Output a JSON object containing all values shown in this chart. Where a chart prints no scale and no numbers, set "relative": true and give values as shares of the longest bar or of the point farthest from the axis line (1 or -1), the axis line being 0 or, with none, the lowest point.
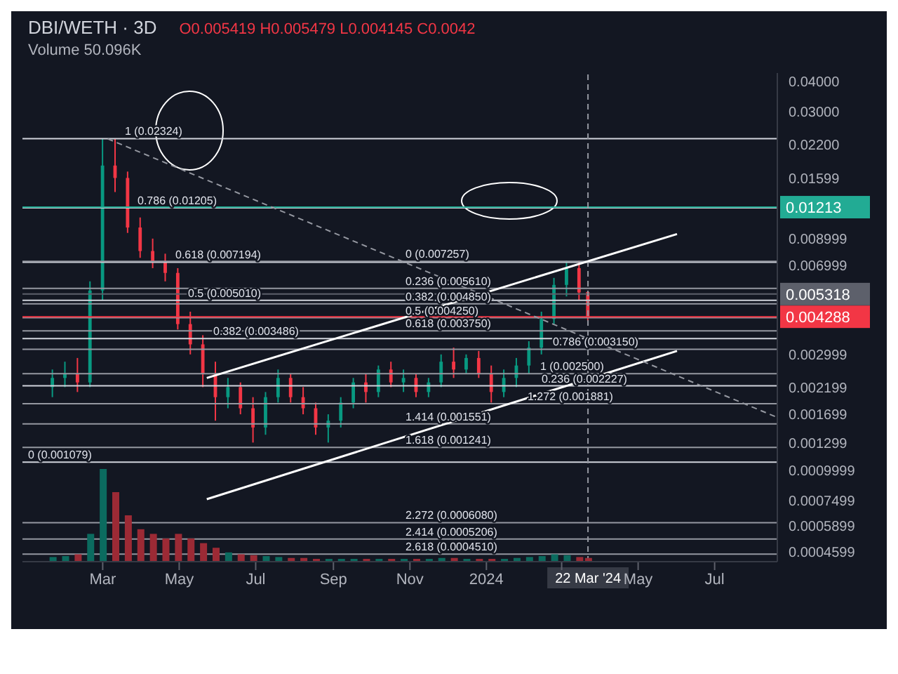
{
  "chart_data": [
    {
      "type": "candlestick",
      "title": "DBI/WETH · 3D",
      "annotations": [
        "Volume 50.096K",
        "O0.005419 H0.005479 L0.004145 C0.0042"
      ],
      "log": "y",
      "grid": false,
      "xlim": [
        "2022-12-27",
        "2024-08-20"
      ],
      "xticks": [
        {
          "value": "2023-03-01",
          "label": "Mar"
        },
        {
          "value": "2023-05-01",
          "label": "May"
        },
        {
          "value": "2023-07-01",
          "label": "Jul"
        },
        {
          "value": "2023-09-01",
          "label": "Sep"
        },
        {
          "value": "2023-11-01",
          "label": "Nov"
        },
        {
          "value": "2024-01-01",
          "label": "2024"
        },
        {
          "value": "2024-03-01",
          "label": null
        },
        {
          "value": "2024-05-01",
          "label": "May"
        },
        {
          "value": "2024-07-01",
          "label": "Jul"
        }
      ],
      "ylim": [
        0.00042,
        0.0433
      ],
      "yticks": [
        {
          "value": 0.04,
          "label": "0.04000"
        },
        {
          "value": 0.03,
          "label": "0.03000"
        },
        {
          "value": 0.022,
          "label": "0.02200"
        },
        0.01599,
        0.008999,
        0.006999,
        0.002999,
        0.002199,
        0.001699,
        0.001299,
        0.0009999,
        0.0007499,
        0.0005899,
        0.0004599
      ],
      "series": [
        {
          "type": "candlestick",
          "x": [
            "2023-01-20",
            "2023-01-30",
            "2023-02-09",
            "2023-02-19",
            "2023-03-01",
            "2023-03-11",
            "2023-03-21",
            "2023-03-31",
            "2023-04-10",
            "2023-04-20",
            "2023-04-30",
            "2023-05-10",
            "2023-05-20",
            "2023-05-30",
            "2023-06-09",
            "2023-06-19",
            "2023-06-29",
            "2023-07-09",
            "2023-07-19",
            "2023-07-29",
            "2023-08-08",
            "2023-08-18",
            "2023-08-28",
            "2023-09-07",
            "2023-09-17",
            "2023-09-27",
            "2023-10-07",
            "2023-10-17",
            "2023-10-27",
            "2023-11-06",
            "2023-11-16",
            "2023-11-26",
            "2023-12-06",
            "2023-12-16",
            "2023-12-26",
            "2024-01-05",
            "2024-01-15",
            "2024-01-25",
            "2024-02-04",
            "2024-02-14",
            "2024-02-24",
            "2024-03-05",
            "2024-03-15",
            "2024-03-22"
          ],
          "ohlc": [
            [
              0.0022,
              0.0026,
              0.002,
              0.0024
            ],
            [
              0.0024,
              0.0028,
              0.0022,
              0.0025
            ],
            [
              0.0025,
              0.0029,
              0.0021,
              0.0023
            ],
            [
              0.0023,
              0.006,
              0.0022,
              0.0055
            ],
            [
              0.0055,
              0.0232,
              0.005,
              0.018
            ],
            [
              0.018,
              0.0232,
              0.014,
              0.016
            ],
            [
              0.016,
              0.017,
              0.0095,
              0.01
            ],
            [
              0.01,
              0.011,
              0.0075,
              0.008
            ],
            [
              0.008,
              0.009,
              0.0068,
              0.0072
            ],
            [
              0.0072,
              0.0078,
              0.006,
              0.0065
            ],
            [
              0.0065,
              0.0068,
              0.0038,
              0.004
            ],
            [
              0.004,
              0.0045,
              0.003,
              0.0033
            ],
            [
              0.0033,
              0.0036,
              0.0022,
              0.0025
            ],
            [
              0.0025,
              0.0028,
              0.0016,
              0.002
            ],
            [
              0.002,
              0.0024,
              0.0018,
              0.0022
            ],
            [
              0.0022,
              0.0023,
              0.0017,
              0.0018
            ],
            [
              0.0018,
              0.002,
              0.0013,
              0.0015
            ],
            [
              0.0015,
              0.0021,
              0.0014,
              0.002
            ],
            [
              0.002,
              0.0026,
              0.0019,
              0.0024
            ],
            [
              0.0024,
              0.0025,
              0.0019,
              0.002
            ],
            [
              0.002,
              0.0022,
              0.0017,
              0.0018
            ],
            [
              0.0018,
              0.0019,
              0.0014,
              0.0015
            ],
            [
              0.0015,
              0.0017,
              0.0013,
              0.0016
            ],
            [
              0.0016,
              0.002,
              0.0015,
              0.0019
            ],
            [
              0.0019,
              0.0024,
              0.0018,
              0.0023
            ],
            [
              0.0023,
              0.0025,
              0.0019,
              0.0021
            ],
            [
              0.0021,
              0.0027,
              0.002,
              0.0026
            ],
            [
              0.0026,
              0.0028,
              0.0022,
              0.0023
            ],
            [
              0.0023,
              0.0026,
              0.0021,
              0.0024
            ],
            [
              0.0024,
              0.0025,
              0.002,
              0.0021
            ],
            [
              0.0021,
              0.0024,
              0.002,
              0.0023
            ],
            [
              0.0023,
              0.003,
              0.0022,
              0.0028
            ],
            [
              0.0028,
              0.0032,
              0.0024,
              0.0026
            ],
            [
              0.0026,
              0.003,
              0.0025,
              0.0029
            ],
            [
              0.0029,
              0.0031,
              0.0024,
              0.0025
            ],
            [
              0.0025,
              0.0027,
              0.0019,
              0.0021
            ],
            [
              0.0021,
              0.0026,
              0.002,
              0.0024
            ],
            [
              0.0024,
              0.0029,
              0.0022,
              0.0027
            ],
            [
              0.0027,
              0.0034,
              0.0025,
              0.0032
            ],
            [
              0.0032,
              0.0045,
              0.003,
              0.0042
            ],
            [
              0.0042,
              0.0062,
              0.004,
              0.0058
            ],
            [
              0.0058,
              0.0073,
              0.0052,
              0.0068
            ],
            [
              0.0068,
              0.0073,
              0.005,
              0.0054
            ],
            [
              0.005419,
              0.005479,
              0.004145,
              0.004288
            ]
          ],
          "colors": [
            "#089981",
            "#089981",
            "#f23645",
            "#089981",
            "#089981",
            "#f23645",
            "#f23645",
            "#f23645",
            "#f23645",
            "#f23645",
            "#f23645",
            "#f23645",
            "#f23645",
            "#f23645",
            "#089981",
            "#f23645",
            "#f23645",
            "#089981",
            "#089981",
            "#f23645",
            "#f23645",
            "#f23645",
            "#089981",
            "#089981",
            "#089981",
            "#f23645",
            "#089981",
            "#f23645",
            "#089981",
            "#f23645",
            "#089981",
            "#089981",
            "#f23645",
            "#089981",
            "#f23645",
            "#f23645",
            "#089981",
            "#089981",
            "#089981",
            "#089981",
            "#089981",
            "#089981",
            "#f23645",
            "#f23645"
          ]
        },
        {
          "type": "line",
          "x": [
            "2023-05-23",
            "2024-06-01"
          ],
          "values": [
            0.00076,
            0.0031
          ],
          "color": "#ffffff",
          "line_style": "solid"
        },
        {
          "type": "line",
          "x": [
            "2023-05-23",
            "2024-06-01"
          ],
          "values": [
            0.0024,
            0.0094
          ],
          "color": "#ffffff",
          "line_style": "solid"
        },
        {
          "type": "line",
          "x": [
            "2023-03-05",
            "2024-08-20"
          ],
          "values": [
            0.0232,
            0.00165
          ],
          "color": "#9598a1",
          "line_style": "dashed"
        }
      ],
      "ref_lines": [
        {
          "axis": "y",
          "value": 0.02324,
          "label": "1 (0.02324)",
          "color": "#d1d4dc"
        },
        {
          "axis": "y",
          "value": 0.01205,
          "label": "0.786 (0.01205)",
          "color": "#d1d4dc"
        },
        {
          "axis": "y",
          "value": 0.007194,
          "label": "0.618 (0.007194)",
          "color": "#d1d4dc"
        },
        {
          "axis": "y",
          "value": 0.00501,
          "label": "0.5 (0.005010)",
          "color": "#d1d4dc"
        },
        {
          "axis": "y",
          "value": 0.003486,
          "label": "0.382 (0.003486)",
          "color": "#d1d4dc"
        },
        {
          "axis": "y",
          "value": 0.002227,
          "label": "0.236 (0.002227)",
          "color": "#d1d4dc"
        },
        {
          "axis": "y",
          "value": 0.001079,
          "label": "0 (0.001079)",
          "color": "#d1d4dc"
        },
        {
          "axis": "y",
          "value": 0.007257,
          "label": "0 (0.007257)",
          "color": "#9598a1"
        },
        {
          "axis": "y",
          "value": 0.00561,
          "label": "0.236 (0.005610)",
          "color": "#9598a1"
        },
        {
          "axis": "y",
          "value": 0.00485,
          "label": "0.382 (0.004850)",
          "color": "#9598a1"
        },
        {
          "axis": "y",
          "value": 0.00425,
          "label": "0.5 (0.004250)",
          "color": "#9598a1"
        },
        {
          "axis": "y",
          "value": 0.00375,
          "label": "0.618 (0.003750)",
          "color": "#9598a1"
        },
        {
          "axis": "y",
          "value": 0.00315,
          "label": "0.786 (0.003150)",
          "color": "#9598a1"
        },
        {
          "axis": "y",
          "value": 0.0025,
          "label": "1 (0.002500)",
          "color": "#9598a1"
        },
        {
          "axis": "y",
          "value": 0.001881,
          "label": "1.272 (0.001881)",
          "color": "#9598a1"
        },
        {
          "axis": "y",
          "value": 0.001551,
          "label": "1.414 (0.001551)",
          "color": "#9598a1"
        },
        {
          "axis": "y",
          "value": 0.001241,
          "label": "1.618 (0.001241)",
          "color": "#9598a1"
        },
        {
          "axis": "y",
          "value": 0.000608,
          "label": "2.272 (0.0006080)",
          "color": "#9598a1"
        },
        {
          "axis": "y",
          "value": 0.0005206,
          "label": "2.414 (0.0005206)",
          "color": "#9598a1"
        },
        {
          "axis": "y",
          "value": 0.000451,
          "label": "2.618 (0.0004510)",
          "color": "#9598a1"
        },
        {
          "axis": "y",
          "value": 0.01213,
          "label": "0.01213",
          "color": "#22ab94"
        },
        {
          "axis": "y",
          "value": 0.005318,
          "label": "0.005318",
          "color": "#5d606b"
        },
        {
          "axis": "y",
          "value": 0.004288,
          "label": "0.004288",
          "color": "#f23645"
        },
        {
          "axis": "x",
          "value": "2024-03-22",
          "label": "22 Mar '24",
          "color": "#9598a1",
          "line_style": "dashed"
        }
      ]
    },
    {
      "type": "bar",
      "relative": true,
      "tick_labels": false,
      "xlim": [
        "2022-12-27",
        "2024-08-20"
      ],
      "x": [
        "2023-01-20",
        "2023-01-30",
        "2023-02-09",
        "2023-02-19",
        "2023-03-01",
        "2023-03-11",
        "2023-03-21",
        "2023-03-31",
        "2023-04-10",
        "2023-04-20",
        "2023-04-30",
        "2023-05-10",
        "2023-05-20",
        "2023-05-30",
        "2023-06-09",
        "2023-06-19",
        "2023-06-29",
        "2023-07-09",
        "2023-07-19",
        "2023-07-29",
        "2023-08-08",
        "2023-08-18",
        "2023-08-28",
        "2023-09-07",
        "2023-09-17",
        "2023-09-27",
        "2023-10-07",
        "2023-10-17",
        "2023-10-27",
        "2023-11-06",
        "2023-11-16",
        "2023-11-26",
        "2023-12-06",
        "2023-12-16",
        "2023-12-26",
        "2024-01-05",
        "2024-01-15",
        "2024-01-25",
        "2024-02-04",
        "2024-02-14",
        "2024-02-24",
        "2024-03-05",
        "2024-03-15",
        "2024-03-22"
      ],
      "values": [
        0.05,
        0.06,
        0.08,
        0.3,
        1,
        0.75,
        0.5,
        0.35,
        0.3,
        0.25,
        0.3,
        0.25,
        0.2,
        0.15,
        0.1,
        0.08,
        0.07,
        0.06,
        0.05,
        0.04,
        0.04,
        0.03,
        0.03,
        0.03,
        0.03,
        0.03,
        0.03,
        0.03,
        0.03,
        0.03,
        0.03,
        0.04,
        0.04,
        0.03,
        0.03,
        0.03,
        0.03,
        0.04,
        0.05,
        0.06,
        0.08,
        0.07,
        0.05,
        0.04
      ],
      "colors": [
        "#0b6b5f",
        "#0b6b5f",
        "#9c2a35",
        "#0b6b5f",
        "#0b6b5f",
        "#9c2a35",
        "#9c2a35",
        "#9c2a35",
        "#9c2a35",
        "#9c2a35",
        "#9c2a35",
        "#9c2a35",
        "#9c2a35",
        "#9c2a35",
        "#0b6b5f",
        "#9c2a35",
        "#9c2a35",
        "#0b6b5f",
        "#0b6b5f",
        "#9c2a35",
        "#9c2a35",
        "#9c2a35",
        "#0b6b5f",
        "#0b6b5f",
        "#0b6b5f",
        "#9c2a35",
        "#0b6b5f",
        "#9c2a35",
        "#0b6b5f",
        "#9c2a35",
        "#0b6b5f",
        "#0b6b5f",
        "#9c2a35",
        "#0b6b5f",
        "#9c2a35",
        "#9c2a35",
        "#0b6b5f",
        "#0b6b5f",
        "#0b6b5f",
        "#0b6b5f",
        "#0b6b5f",
        "#0b6b5f",
        "#9c2a35",
        "#9c2a35"
      ]
    }
  ]
}
